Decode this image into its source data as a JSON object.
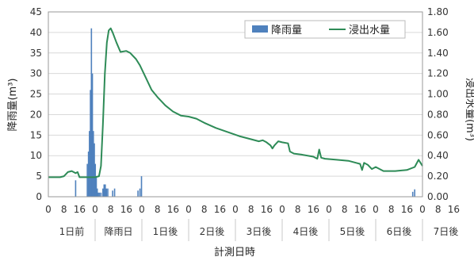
{
  "chart_data": {
    "type": "bar+line",
    "xlabel": "計測日時",
    "ylabel_left": "降雨量(m³)",
    "ylabel_right": "浸出水量(m³)",
    "ylim_left": [
      0,
      45
    ],
    "ylim_right": [
      0,
      1.8
    ],
    "yticks_left": [
      "0",
      "5",
      "10",
      "15",
      "20",
      "25",
      "30",
      "35",
      "40",
      "45"
    ],
    "yticks_right": [
      "0.00",
      "0.20",
      "0.40",
      "0.60",
      "0.80",
      "1.00",
      "1.20",
      "1.40",
      "1.60",
      "1.80"
    ],
    "xlim_hours": [
      0,
      192
    ],
    "hour_tick_labels": [
      "0",
      "8",
      "16"
    ],
    "day_labels": [
      "1日前",
      "降雨日",
      "1日後",
      "2日後",
      "3日後",
      "4日後",
      "5日後",
      "6日後",
      "7日後"
    ],
    "grid": "horizontal",
    "legend_position": "top-right",
    "series": [
      {
        "name": "降雨量",
        "kind": "bar",
        "axis": "left",
        "color": "#4f81bd",
        "points": [
          [
            14,
            4
          ],
          [
            20,
            8
          ],
          [
            20.6,
            11
          ],
          [
            21.1,
            16
          ],
          [
            21.6,
            26
          ],
          [
            22.1,
            41
          ],
          [
            22.6,
            30
          ],
          [
            23.1,
            16
          ],
          [
            23.6,
            13
          ],
          [
            24.1,
            8
          ],
          [
            24.6,
            5
          ],
          [
            25.1,
            2
          ],
          [
            25.6,
            1
          ],
          [
            26.2,
            1
          ],
          [
            27,
            1
          ],
          [
            28,
            2
          ],
          [
            28.6,
            3
          ],
          [
            29.2,
            3
          ],
          [
            29.8,
            2
          ],
          [
            30.5,
            2
          ],
          [
            33,
            1.5
          ],
          [
            34,
            2
          ],
          [
            46,
            1.5
          ],
          [
            47,
            2
          ],
          [
            47.8,
            5
          ],
          [
            187,
            1.2
          ],
          [
            188,
            1.8
          ]
        ]
      },
      {
        "name": "浸出水量",
        "kind": "line",
        "axis": "right",
        "color": "#2e8b57",
        "points": [
          [
            0,
            0.19
          ],
          [
            6,
            0.19
          ],
          [
            8,
            0.2
          ],
          [
            10,
            0.24
          ],
          [
            12,
            0.25
          ],
          [
            14,
            0.23
          ],
          [
            15,
            0.24
          ],
          [
            16,
            0.19
          ],
          [
            24,
            0.19
          ],
          [
            26,
            0.2
          ],
          [
            27,
            0.3
          ],
          [
            28,
            0.7
          ],
          [
            29,
            1.2
          ],
          [
            30,
            1.5
          ],
          [
            31,
            1.62
          ],
          [
            32,
            1.64
          ],
          [
            33,
            1.6
          ],
          [
            35,
            1.5
          ],
          [
            37,
            1.41
          ],
          [
            40,
            1.42
          ],
          [
            42,
            1.4
          ],
          [
            45,
            1.34
          ],
          [
            47,
            1.28
          ],
          [
            50,
            1.16
          ],
          [
            53,
            1.04
          ],
          [
            56,
            0.97
          ],
          [
            60,
            0.89
          ],
          [
            64,
            0.83
          ],
          [
            68,
            0.79
          ],
          [
            72,
            0.78
          ],
          [
            76,
            0.76
          ],
          [
            80,
            0.72
          ],
          [
            86,
            0.67
          ],
          [
            92,
            0.63
          ],
          [
            98,
            0.59
          ],
          [
            104,
            0.56
          ],
          [
            108,
            0.54
          ],
          [
            110,
            0.55
          ],
          [
            112,
            0.53
          ],
          [
            114,
            0.5
          ],
          [
            115,
            0.47
          ],
          [
            116,
            0.5
          ],
          [
            118,
            0.54
          ],
          [
            120,
            0.53
          ],
          [
            123,
            0.52
          ],
          [
            124,
            0.44
          ],
          [
            126,
            0.42
          ],
          [
            130,
            0.41
          ],
          [
            136,
            0.39
          ],
          [
            138,
            0.37
          ],
          [
            139,
            0.46
          ],
          [
            140,
            0.38
          ],
          [
            142,
            0.37
          ],
          [
            148,
            0.36
          ],
          [
            154,
            0.35
          ],
          [
            158,
            0.33
          ],
          [
            160,
            0.32
          ],
          [
            161,
            0.26
          ],
          [
            162,
            0.33
          ],
          [
            164,
            0.31
          ],
          [
            166,
            0.27
          ],
          [
            168,
            0.29
          ],
          [
            172,
            0.25
          ],
          [
            178,
            0.25
          ],
          [
            184,
            0.26
          ],
          [
            188,
            0.29
          ],
          [
            190,
            0.36
          ],
          [
            192,
            0.3
          ]
        ]
      }
    ]
  }
}
